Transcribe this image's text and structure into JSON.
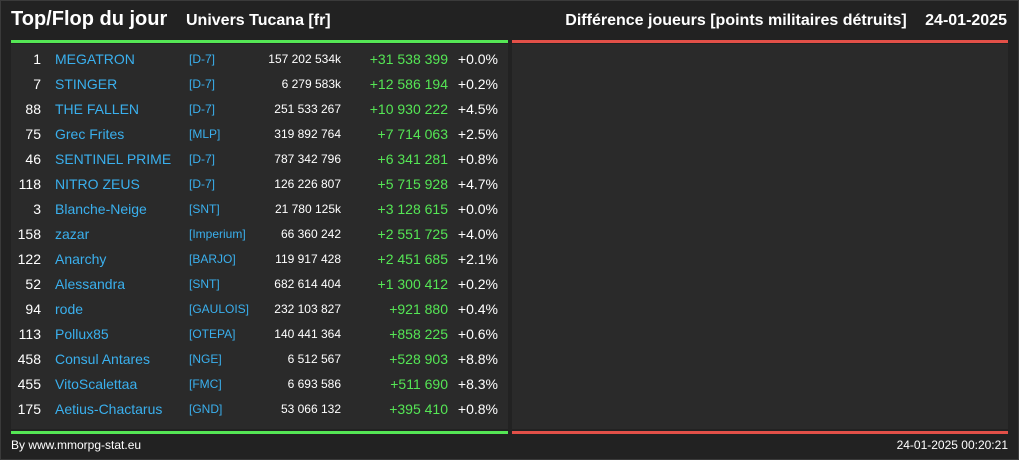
{
  "header": {
    "title": "Top/Flop du jour",
    "universe": "Univers Tucana [fr]",
    "metric": "Différence joueurs [points militaires détruits]",
    "date": "24-01-2025"
  },
  "colors": {
    "background": "#222222",
    "panel": "#2a2a2a",
    "link": "#3ab0ee",
    "positive": "#55e655",
    "top_bar": "#55e655",
    "flop_bar": "#e25048"
  },
  "rows": [
    {
      "rank": "1",
      "name": "MEGATRON",
      "alliance": "[D-7]",
      "points": "157 202 534k",
      "diff": "+31 538 399",
      "pct": "+0.0%"
    },
    {
      "rank": "7",
      "name": "STINGER",
      "alliance": "[D-7]",
      "points": "6 279 583k",
      "diff": "+12 586 194",
      "pct": "+0.2%"
    },
    {
      "rank": "88",
      "name": "THE FALLEN",
      "alliance": "[D-7]",
      "points": "251 533 267",
      "diff": "+10 930 222",
      "pct": "+4.5%"
    },
    {
      "rank": "75",
      "name": "Grec Frites",
      "alliance": "[MLP]",
      "points": "319 892 764",
      "diff": "+7 714 063",
      "pct": "+2.5%"
    },
    {
      "rank": "46",
      "name": "SENTINEL PRIME",
      "alliance": "[D-7]",
      "points": "787 342 796",
      "diff": "+6 341 281",
      "pct": "+0.8%"
    },
    {
      "rank": "118",
      "name": "NITRO ZEUS",
      "alliance": "[D-7]",
      "points": "126 226 807",
      "diff": "+5 715 928",
      "pct": "+4.7%"
    },
    {
      "rank": "3",
      "name": "Blanche-Neige",
      "alliance": "[SNT]",
      "points": "21 780 125k",
      "diff": "+3 128 615",
      "pct": "+0.0%"
    },
    {
      "rank": "158",
      "name": "zazar",
      "alliance": "[Imperium]",
      "points": "66 360 242",
      "diff": "+2 551 725",
      "pct": "+4.0%"
    },
    {
      "rank": "122",
      "name": "Anarchy",
      "alliance": "[BARJO]",
      "points": "119 917 428",
      "diff": "+2 451 685",
      "pct": "+2.1%"
    },
    {
      "rank": "52",
      "name": "Alessandra",
      "alliance": "[SNT]",
      "points": "682 614 404",
      "diff": "+1 300 412",
      "pct": "+0.2%"
    },
    {
      "rank": "94",
      "name": "rode",
      "alliance": "[GAULOIS]",
      "points": "232 103 827",
      "diff": "+921 880",
      "pct": "+0.4%"
    },
    {
      "rank": "113",
      "name": "Pollux85",
      "alliance": "[OTEPA]",
      "points": "140 441 364",
      "diff": "+858 225",
      "pct": "+0.6%"
    },
    {
      "rank": "458",
      "name": "Consul Antares",
      "alliance": "[NGE]",
      "points": "6 512 567",
      "diff": "+528 903",
      "pct": "+8.8%"
    },
    {
      "rank": "455",
      "name": "VitoScalettaa",
      "alliance": "[FMC]",
      "points": "6 693 586",
      "diff": "+511 690",
      "pct": "+8.3%"
    },
    {
      "rank": "175",
      "name": "Aetius-Chactarus",
      "alliance": "[GND]",
      "points": "53 066 132",
      "diff": "+395 410",
      "pct": "+0.8%"
    }
  ],
  "footer": {
    "credit": "By www.mmorpg-stat.eu",
    "timestamp": "24-01-2025 00:20:21"
  }
}
